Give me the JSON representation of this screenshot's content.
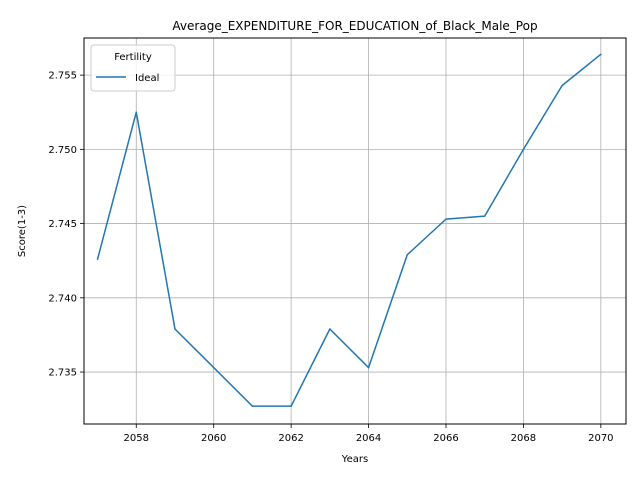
{
  "chart_data": {
    "type": "line",
    "title": "Average_EXPENDITURE_FOR_EDUCATION_of_Black_Male_Pop",
    "xlabel": "Years",
    "ylabel": "Score(1-3)",
    "xlim": [
      2056.65,
      2070.65
    ],
    "ylim": [
      2.7315,
      2.7575
    ],
    "x_ticks": [
      2058,
      2060,
      2062,
      2064,
      2066,
      2068,
      2070
    ],
    "y_ticks": [
      2.735,
      2.74,
      2.745,
      2.75,
      2.755
    ],
    "y_tick_labels": [
      "2.735",
      "2.740",
      "2.745",
      "2.750",
      "2.755"
    ],
    "grid": true,
    "legend": {
      "title": "Fertility",
      "placement": "top-left"
    },
    "series": [
      {
        "name": "Ideal",
        "color": "#1f77b4",
        "x": [
          2057,
          2058,
          2059,
          2060,
          2061,
          2062,
          2063,
          2064,
          2065,
          2066,
          2067,
          2068,
          2069,
          2070
        ],
        "y": [
          2.7426,
          2.7525,
          2.7379,
          2.7353,
          2.7327,
          2.7327,
          2.7379,
          2.7353,
          2.7429,
          2.7453,
          2.7455,
          2.75,
          2.7543,
          2.7564
        ]
      }
    ]
  }
}
